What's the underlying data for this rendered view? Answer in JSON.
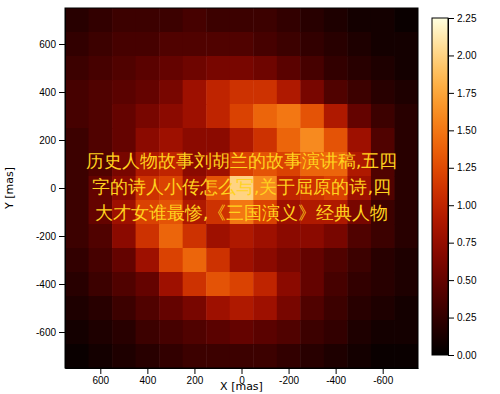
{
  "chart_data": {
    "type": "heatmap",
    "x_label": "X [mas]",
    "y_label": "Y [mas]",
    "x": [
      700,
      600,
      500,
      400,
      300,
      200,
      100,
      0,
      -100,
      -200,
      -300,
      -400,
      -500,
      -600,
      -700
    ],
    "y": [
      700,
      600,
      500,
      400,
      300,
      200,
      100,
      0,
      -100,
      -200,
      -300,
      -400,
      -500,
      -600,
      -700
    ],
    "z": [
      [
        0.2,
        0.25,
        0.3,
        0.3,
        0.3,
        0.35,
        0.3,
        0.3,
        0.3,
        0.25,
        0.2,
        0.15,
        0.1,
        0.1,
        0.05
      ],
      [
        0.25,
        0.3,
        0.35,
        0.35,
        0.4,
        0.4,
        0.4,
        0.4,
        0.35,
        0.3,
        0.25,
        0.2,
        0.15,
        0.1,
        0.1
      ],
      [
        0.3,
        0.35,
        0.4,
        0.45,
        0.5,
        0.55,
        0.6,
        0.6,
        0.55,
        0.45,
        0.35,
        0.25,
        0.2,
        0.15,
        0.1
      ],
      [
        0.35,
        0.4,
        0.45,
        0.5,
        0.6,
        0.8,
        1.0,
        1.1,
        1.1,
        0.9,
        0.6,
        0.4,
        0.3,
        0.2,
        0.15
      ],
      [
        0.35,
        0.4,
        0.5,
        0.6,
        0.7,
        0.8,
        1.0,
        1.2,
        1.4,
        1.5,
        1.3,
        0.9,
        0.5,
        0.3,
        0.2
      ],
      [
        0.3,
        0.4,
        0.5,
        0.7,
        0.8,
        0.7,
        0.7,
        0.9,
        1.1,
        1.4,
        1.6,
        1.3,
        0.8,
        0.4,
        0.2
      ],
      [
        0.3,
        0.4,
        0.6,
        0.9,
        1.0,
        0.7,
        0.8,
        1.2,
        1.3,
        1.2,
        1.4,
        1.4,
        0.9,
        0.4,
        0.2
      ],
      [
        0.3,
        0.5,
        0.7,
        1.1,
        1.2,
        0.8,
        1.3,
        2.0,
        1.6,
        1.0,
        1.1,
        1.2,
        0.8,
        0.4,
        0.2
      ],
      [
        0.3,
        0.5,
        0.8,
        1.2,
        1.3,
        0.9,
        1.1,
        1.5,
        1.2,
        0.8,
        0.9,
        0.9,
        0.6,
        0.3,
        0.2
      ],
      [
        0.3,
        0.4,
        0.7,
        1.1,
        1.4,
        1.1,
        0.8,
        0.9,
        0.8,
        0.7,
        0.7,
        0.6,
        0.4,
        0.3,
        0.2
      ],
      [
        0.25,
        0.35,
        0.5,
        0.8,
        1.2,
        1.4,
        1.1,
        0.8,
        0.7,
        0.6,
        0.5,
        0.4,
        0.3,
        0.2,
        0.15
      ],
      [
        0.2,
        0.3,
        0.4,
        0.5,
        0.8,
        1.1,
        1.3,
        1.2,
        1.0,
        0.7,
        0.5,
        0.35,
        0.25,
        0.2,
        0.15
      ],
      [
        0.15,
        0.2,
        0.3,
        0.4,
        0.5,
        0.6,
        0.8,
        0.9,
        0.8,
        0.6,
        0.4,
        0.3,
        0.2,
        0.15,
        0.1
      ],
      [
        0.1,
        0.15,
        0.2,
        0.3,
        0.35,
        0.4,
        0.45,
        0.5,
        0.45,
        0.4,
        0.3,
        0.25,
        0.15,
        0.1,
        0.1
      ],
      [
        0.05,
        0.1,
        0.15,
        0.2,
        0.25,
        0.3,
        0.3,
        0.3,
        0.3,
        0.25,
        0.2,
        0.15,
        0.1,
        0.05,
        0.05
      ]
    ],
    "xlim": [
      750,
      -750
    ],
    "ylim": [
      -750,
      750
    ],
    "xticks": [
      600,
      400,
      200,
      0,
      -200,
      -400,
      -600
    ],
    "yticks": [
      -600,
      -400,
      -200,
      0,
      200,
      400,
      600
    ],
    "colorbar": {
      "range": [
        0,
        2.25
      ],
      "ticks": [
        {
          "value": 0,
          "label": "0.00"
        },
        {
          "value": 0.25,
          "label": "0.25"
        },
        {
          "value": 0.5,
          "label": "0.50"
        },
        {
          "value": 0.75,
          "label": "0.75"
        },
        {
          "value": 1,
          "label": "1.00"
        },
        {
          "value": 1.25,
          "label": "1.25"
        },
        {
          "value": 1.5,
          "label": "1.50"
        },
        {
          "value": 1.75,
          "label": "1.75"
        },
        {
          "value": 2,
          "label": "2.00"
        },
        {
          "value": 2.25,
          "label": "2.25"
        }
      ]
    },
    "annotations": [
      "历史人物故事刘胡兰的故事演讲稿,五四",
      "字的诗人小传怎么写,关于屈原的诗,四",
      "大才女谁最惨,《三国演义》经典人物"
    ]
  }
}
